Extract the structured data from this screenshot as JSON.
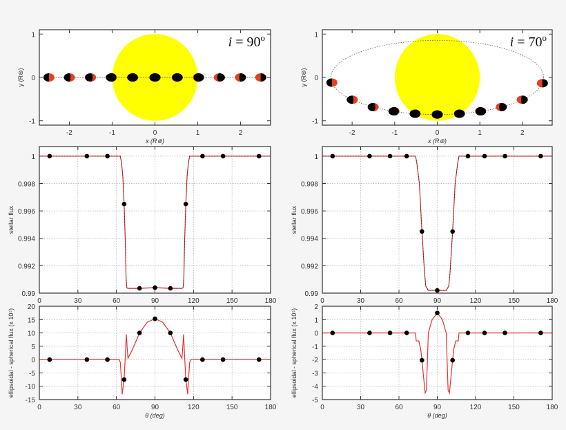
{
  "colors": {
    "star": "#ffff00",
    "planet": "#000000",
    "dayside": "#e8401c",
    "model": "#e83030",
    "grid": "#aaaaaa",
    "frame": "#333333"
  },
  "chart_data": [
    {
      "type": "scatter",
      "panel": "top-left",
      "annotation": {
        "italic": "i",
        "text": " = 90",
        "sup": "o"
      },
      "xlabel": "x (R⊛)",
      "ylabel": "y (R⊛)",
      "xlim": [
        -2.7,
        2.7
      ],
      "ylim": [
        -1.1,
        1.1
      ],
      "xticks": [
        "-2",
        "-1",
        "0",
        "1",
        "2"
      ],
      "yticks": [
        "-1",
        "0",
        "1"
      ],
      "grid": false,
      "star_radius": 1,
      "inclination_deg": 90,
      "orbit_radius": 2.5,
      "theta_deg": [
        8,
        37,
        53,
        66,
        78,
        90,
        102,
        114,
        127,
        143,
        171
      ]
    },
    {
      "type": "scatter",
      "panel": "top-right",
      "annotation": {
        "italic": "i",
        "text": " = 70",
        "sup": "o"
      },
      "xlabel": "x (R⊛)",
      "ylabel": "y (R⊛)",
      "xlim": [
        -2.7,
        2.7
      ],
      "ylim": [
        -1.1,
        1.1
      ],
      "xticks": [
        "-2",
        "-1",
        "0",
        "1",
        "2"
      ],
      "yticks": [
        "-1",
        "0",
        "1"
      ],
      "grid": false,
      "star_radius": 1,
      "inclination_deg": 70,
      "orbit_radius": 2.5,
      "theta_deg": [
        8,
        37,
        53,
        66,
        78,
        90,
        102,
        114,
        127,
        143,
        171
      ]
    },
    {
      "type": "line",
      "panel": "middle-left",
      "xlabel": "",
      "ylabel": "stellar flux",
      "xlim": [
        0,
        180
      ],
      "ylim": [
        0.99,
        1.0007
      ],
      "xticks": [
        "0",
        "30",
        "60",
        "90",
        "120",
        "150",
        "180"
      ],
      "yticks": [
        "0.99",
        "0.992",
        "0.994",
        "0.996",
        "0.998",
        "1"
      ],
      "grid": true,
      "curve": [
        [
          0,
          1
        ],
        [
          63,
          1
        ],
        [
          64,
          0.9995
        ],
        [
          65,
          0.9985
        ],
        [
          66,
          0.9965
        ],
        [
          67,
          0.9935
        ],
        [
          67.5,
          0.9912
        ],
        [
          68,
          0.9904
        ],
        [
          69,
          0.99035
        ],
        [
          78,
          0.99035
        ],
        [
          90,
          0.9904
        ],
        [
          102,
          0.99035
        ],
        [
          111,
          0.99035
        ],
        [
          112,
          0.9904
        ],
        [
          112.5,
          0.9912
        ],
        [
          113,
          0.9935
        ],
        [
          114,
          0.9965
        ],
        [
          115,
          0.9985
        ],
        [
          116,
          0.9995
        ],
        [
          117,
          1
        ],
        [
          180,
          1
        ]
      ],
      "points": [
        [
          8,
          1
        ],
        [
          37,
          1
        ],
        [
          53,
          1
        ],
        [
          66,
          0.9965
        ],
        [
          78,
          0.99035
        ],
        [
          90,
          0.9904
        ],
        [
          102,
          0.99035
        ],
        [
          114,
          0.9965
        ],
        [
          127,
          1
        ],
        [
          143,
          1
        ],
        [
          171,
          1
        ]
      ]
    },
    {
      "type": "line",
      "panel": "middle-right",
      "xlabel": "",
      "ylabel": "stellar flux",
      "xlim": [
        0,
        180
      ],
      "ylim": [
        0.99,
        1.0007
      ],
      "xticks": [
        "0",
        "30",
        "60",
        "90",
        "120",
        "150",
        "180"
      ],
      "yticks": [
        "0.99",
        "0.992",
        "0.994",
        "0.996",
        "0.998",
        "1"
      ],
      "grid": true,
      "curve": [
        [
          0,
          1
        ],
        [
          73,
          1
        ],
        [
          74,
          0.9995
        ],
        [
          76,
          0.998
        ],
        [
          78,
          0.9945
        ],
        [
          80,
          0.9915
        ],
        [
          81,
          0.9905
        ],
        [
          83,
          0.9902
        ],
        [
          90,
          0.9902
        ],
        [
          97,
          0.9902
        ],
        [
          99,
          0.9905
        ],
        [
          100,
          0.9915
        ],
        [
          102,
          0.9945
        ],
        [
          104,
          0.998
        ],
        [
          106,
          0.9995
        ],
        [
          107,
          1
        ],
        [
          180,
          1
        ]
      ],
      "points": [
        [
          8,
          1
        ],
        [
          37,
          1
        ],
        [
          53,
          1
        ],
        [
          66,
          1
        ],
        [
          78,
          0.9945
        ],
        [
          90,
          0.9902
        ],
        [
          102,
          0.9945
        ],
        [
          114,
          1
        ],
        [
          127,
          1
        ],
        [
          143,
          1
        ],
        [
          171,
          1
        ]
      ]
    },
    {
      "type": "line",
      "panel": "bottom-left",
      "xlabel": "θ (deg)",
      "ylabel": "ellipsoidal - spherical flux (x 10⁵)",
      "xlim": [
        0,
        180
      ],
      "ylim": [
        -15,
        20
      ],
      "xticks": [
        "0",
        "30",
        "60",
        "90",
        "120",
        "150",
        "180"
      ],
      "yticks": [
        "-15",
        "-10",
        "-5",
        "0",
        "5",
        "10",
        "15",
        "20"
      ],
      "grid": true,
      "curve": [
        [
          0,
          0
        ],
        [
          62,
          0
        ],
        [
          63,
          -1
        ],
        [
          64,
          -8
        ],
        [
          64.5,
          -13
        ],
        [
          65,
          -11
        ],
        [
          66,
          -7.5
        ],
        [
          67,
          2
        ],
        [
          67.7,
          9.5
        ],
        [
          68.3,
          5
        ],
        [
          69,
          0.5
        ],
        [
          72,
          3.3
        ],
        [
          78,
          10
        ],
        [
          84,
          14
        ],
        [
          90,
          15.3
        ],
        [
          96,
          14
        ],
        [
          102,
          10
        ],
        [
          108,
          3.3
        ],
        [
          111,
          0.5
        ],
        [
          111.7,
          5
        ],
        [
          112.3,
          9.5
        ],
        [
          113,
          2
        ],
        [
          114,
          -7.5
        ],
        [
          115,
          -11
        ],
        [
          115.5,
          -13
        ],
        [
          116,
          -8
        ],
        [
          117,
          -1
        ],
        [
          118,
          0
        ],
        [
          180,
          0
        ]
      ],
      "points": [
        [
          8,
          0
        ],
        [
          37,
          0
        ],
        [
          53,
          0
        ],
        [
          66,
          -7.5
        ],
        [
          78,
          10
        ],
        [
          90,
          15.3
        ],
        [
          102,
          10
        ],
        [
          114,
          -7.5
        ],
        [
          127,
          0
        ],
        [
          143,
          0
        ],
        [
          171,
          0
        ]
      ]
    },
    {
      "type": "line",
      "panel": "bottom-right",
      "xlabel": "θ (deg)",
      "ylabel": "ellipsoidal - spherical flux (x 10⁵)",
      "xlim": [
        0,
        180
      ],
      "ylim": [
        -5,
        2
      ],
      "xticks": [
        "0",
        "30",
        "60",
        "90",
        "120",
        "150",
        "180"
      ],
      "yticks": [
        "-5",
        "-4",
        "-3",
        "-2",
        "-1",
        "0",
        "1",
        "2"
      ],
      "grid": true,
      "curve": [
        [
          0,
          0
        ],
        [
          73,
          0
        ],
        [
          73.5,
          -0.6
        ],
        [
          75.5,
          -0.6
        ],
        [
          77,
          -1.2
        ],
        [
          78,
          -2.05
        ],
        [
          79,
          -3
        ],
        [
          80.5,
          -4.5
        ],
        [
          81.5,
          -4.3
        ],
        [
          82.5,
          -1.5
        ],
        [
          83,
          0
        ],
        [
          86,
          1
        ],
        [
          90,
          1.5
        ],
        [
          94,
          1
        ],
        [
          97,
          0
        ],
        [
          97.5,
          -1.5
        ],
        [
          98.5,
          -4.3
        ],
        [
          99.5,
          -4.5
        ],
        [
          101,
          -3
        ],
        [
          102,
          -2.05
        ],
        [
          103,
          -1.2
        ],
        [
          104.5,
          -0.6
        ],
        [
          106.5,
          -0.6
        ],
        [
          107,
          0
        ],
        [
          180,
          0
        ]
      ],
      "points": [
        [
          8,
          0
        ],
        [
          37,
          0
        ],
        [
          53,
          0
        ],
        [
          66,
          0
        ],
        [
          78,
          -2.05
        ],
        [
          90,
          1.5
        ],
        [
          102,
          -2.05
        ],
        [
          114,
          0
        ],
        [
          127,
          0
        ],
        [
          143,
          0
        ],
        [
          171,
          0
        ]
      ]
    }
  ]
}
